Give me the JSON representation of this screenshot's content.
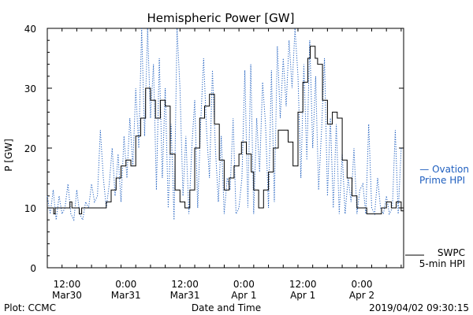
{
  "chart_data": {
    "type": "line",
    "title": "Hemispheric Power [GW]",
    "ylabel": "P [GW]",
    "xlabel": "Date and Time",
    "ylim": [
      0,
      40
    ],
    "yticks": [
      "0",
      "10",
      "20",
      "30",
      "40"
    ],
    "x_unit": "hours since 2019-03-30 00:00",
    "xlim": [
      8,
      80.5
    ],
    "xticks": [
      {
        "x": 12,
        "line1": "12:00",
        "line2": "Mar30"
      },
      {
        "x": 24,
        "line1": "0:00",
        "line2": "Mar31"
      },
      {
        "x": 36,
        "line1": "12:00",
        "line2": "Mar31"
      },
      {
        "x": 48,
        "line1": "0:00",
        "line2": "Apr 1"
      },
      {
        "x": 60,
        "line1": "12:00",
        "line2": "Apr 1"
      },
      {
        "x": 72,
        "line1": "0:00",
        "line2": "Apr 2"
      }
    ],
    "series": [
      {
        "name": "Ovation Prime HPI",
        "color": "#1f5fbf",
        "style": "dotted",
        "points": [
          [
            8,
            12
          ],
          [
            8.6,
            9
          ],
          [
            9.2,
            13
          ],
          [
            9.8,
            8
          ],
          [
            10.4,
            12
          ],
          [
            11,
            9
          ],
          [
            11.6,
            10
          ],
          [
            12.2,
            14
          ],
          [
            12.8,
            9
          ],
          [
            13.4,
            8
          ],
          [
            14,
            13
          ],
          [
            14.6,
            9
          ],
          [
            15.2,
            8
          ],
          [
            15.8,
            11
          ],
          [
            16.4,
            10
          ],
          [
            17,
            14
          ],
          [
            17.6,
            11
          ],
          [
            18.2,
            12
          ],
          [
            18.8,
            23
          ],
          [
            19.4,
            15
          ],
          [
            20,
            10
          ],
          [
            20.6,
            14
          ],
          [
            21.2,
            20
          ],
          [
            21.8,
            12
          ],
          [
            22.4,
            19
          ],
          [
            23,
            11
          ],
          [
            23.6,
            22
          ],
          [
            24.2,
            15
          ],
          [
            24.8,
            25
          ],
          [
            25.4,
            17
          ],
          [
            26,
            30
          ],
          [
            26.6,
            20
          ],
          [
            27.2,
            40
          ],
          [
            27.8,
            22
          ],
          [
            28.4,
            40
          ],
          [
            29,
            25
          ],
          [
            29.6,
            34
          ],
          [
            30.2,
            13
          ],
          [
            30.8,
            35
          ],
          [
            31.4,
            15
          ],
          [
            32,
            30
          ],
          [
            32.6,
            10
          ],
          [
            33.2,
            24
          ],
          [
            33.8,
            8
          ],
          [
            34.4,
            40
          ],
          [
            35,
            30
          ],
          [
            35.6,
            12
          ],
          [
            36.2,
            22
          ],
          [
            36.8,
            9
          ],
          [
            37.4,
            20
          ],
          [
            38,
            28
          ],
          [
            38.6,
            10
          ],
          [
            39.2,
            24
          ],
          [
            39.8,
            35
          ],
          [
            40.4,
            23
          ],
          [
            41,
            15
          ],
          [
            41.6,
            33
          ],
          [
            42.2,
            20
          ],
          [
            42.8,
            11
          ],
          [
            43.4,
            22
          ],
          [
            44,
            9
          ],
          [
            44.6,
            15
          ],
          [
            45.2,
            13
          ],
          [
            45.8,
            25
          ],
          [
            46.4,
            9
          ],
          [
            47,
            10
          ],
          [
            47.6,
            15
          ],
          [
            48.2,
            33
          ],
          [
            48.8,
            10
          ],
          [
            49.4,
            34
          ],
          [
            50,
            9
          ],
          [
            50.6,
            25
          ],
          [
            51.2,
            16
          ],
          [
            51.8,
            31
          ],
          [
            52.4,
            24
          ],
          [
            53,
            10
          ],
          [
            53.6,
            33
          ],
          [
            54.2,
            11
          ],
          [
            54.8,
            37
          ],
          [
            55.4,
            25
          ],
          [
            56,
            35
          ],
          [
            56.6,
            27
          ],
          [
            57.2,
            38
          ],
          [
            57.8,
            30
          ],
          [
            58.4,
            40
          ],
          [
            59,
            32
          ],
          [
            59.6,
            15
          ],
          [
            60.2,
            34
          ],
          [
            60.8,
            18
          ],
          [
            61.4,
            38
          ],
          [
            62,
            20
          ],
          [
            62.6,
            32
          ],
          [
            63.2,
            13
          ],
          [
            63.8,
            23
          ],
          [
            64.4,
            35
          ],
          [
            65,
            12
          ],
          [
            65.6,
            25
          ],
          [
            66.2,
            10
          ],
          [
            66.8,
            24
          ],
          [
            67.4,
            9
          ],
          [
            68,
            19
          ],
          [
            68.6,
            9
          ],
          [
            69.2,
            15
          ],
          [
            69.8,
            11
          ],
          [
            70.4,
            20
          ],
          [
            71,
            9
          ],
          [
            71.6,
            13
          ],
          [
            72.2,
            14
          ],
          [
            72.8,
            9
          ],
          [
            73.4,
            24
          ],
          [
            74,
            10
          ],
          [
            74.6,
            9
          ],
          [
            75.2,
            15
          ],
          [
            75.8,
            10
          ],
          [
            76.4,
            9
          ],
          [
            77,
            12
          ],
          [
            77.6,
            9
          ],
          [
            78.2,
            10
          ],
          [
            78.8,
            23
          ],
          [
            79.4,
            9
          ],
          [
            80,
            20
          ]
        ]
      },
      {
        "name": "SWPC 5-min HPI",
        "color": "#000000",
        "style": "solid",
        "points": [
          [
            8,
            10
          ],
          [
            9,
            10
          ],
          [
            9.3,
            9
          ],
          [
            9.6,
            10
          ],
          [
            12,
            10
          ],
          [
            12.6,
            11
          ],
          [
            13,
            10
          ],
          [
            14,
            10
          ],
          [
            14.5,
            9
          ],
          [
            15,
            10
          ],
          [
            19,
            10
          ],
          [
            20,
            11
          ],
          [
            21,
            13
          ],
          [
            22,
            15
          ],
          [
            23,
            17
          ],
          [
            24,
            18
          ],
          [
            25,
            17
          ],
          [
            26,
            22
          ],
          [
            27,
            25
          ],
          [
            28,
            30
          ],
          [
            29,
            28
          ],
          [
            30,
            25
          ],
          [
            31,
            28
          ],
          [
            32,
            27
          ],
          [
            33,
            19
          ],
          [
            34,
            13
          ],
          [
            35,
            11
          ],
          [
            36,
            10
          ],
          [
            37,
            13
          ],
          [
            38,
            20
          ],
          [
            39,
            25
          ],
          [
            40,
            27
          ],
          [
            41,
            29
          ],
          [
            42,
            24
          ],
          [
            43,
            18
          ],
          [
            44,
            13
          ],
          [
            45,
            15
          ],
          [
            46,
            17
          ],
          [
            47,
            19
          ],
          [
            47.5,
            21
          ],
          [
            48.5,
            19
          ],
          [
            49.5,
            16
          ],
          [
            50,
            13
          ],
          [
            51,
            10
          ],
          [
            52,
            13
          ],
          [
            53,
            16
          ],
          [
            54,
            20
          ],
          [
            55,
            23
          ],
          [
            56,
            23
          ],
          [
            57,
            21
          ],
          [
            58,
            17
          ],
          [
            59,
            26
          ],
          [
            60,
            31
          ],
          [
            61,
            35
          ],
          [
            61.5,
            37
          ],
          [
            62.5,
            35
          ],
          [
            63,
            34
          ],
          [
            64,
            28
          ],
          [
            65,
            24
          ],
          [
            66,
            26
          ],
          [
            67,
            25
          ],
          [
            68,
            18
          ],
          [
            69,
            15
          ],
          [
            70,
            12
          ],
          [
            71,
            10
          ],
          [
            72,
            10
          ],
          [
            73,
            9
          ],
          [
            75,
            9
          ],
          [
            76,
            10
          ],
          [
            77,
            11
          ],
          [
            78,
            10
          ],
          [
            79,
            11
          ],
          [
            80,
            9.5
          ],
          [
            80.5,
            10
          ]
        ]
      }
    ],
    "legend": [
      {
        "series": "Ovation Prime HPI",
        "line1": "— Ovation",
        "line2": "Prime HPI"
      },
      {
        "series": "SWPC 5-min HPI",
        "line1": "SWPC",
        "line2": "5-min HPI"
      }
    ],
    "legend_position": "right"
  },
  "footer": {
    "left": "Plot: CCMC",
    "center": "Date and Time",
    "right": "2019/04/02 09:30:15"
  }
}
